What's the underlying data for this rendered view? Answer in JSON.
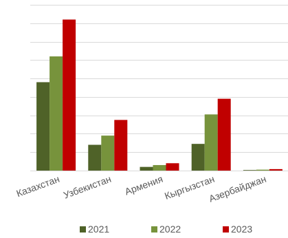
{
  "chart_data": {
    "type": "bar",
    "title": "",
    "xlabel": "",
    "ylabel": "",
    "categories": [
      "Казахстан",
      "Узбекистан",
      "Армения",
      "Кыргызстан",
      "Азербайджан"
    ],
    "ylim": [
      0,
      9
    ],
    "y_gridlines": [
      1,
      2,
      3,
      4,
      5,
      6,
      7,
      8,
      9
    ],
    "y_tick_labels_shown": false,
    "grid": true,
    "legend_position": "bottom",
    "series": [
      {
        "name": "2021",
        "color": "#4f6228",
        "values": [
          4.8,
          1.4,
          0.2,
          1.45,
          0.03
        ]
      },
      {
        "name": "2022",
        "color": "#77933c",
        "values": [
          6.2,
          1.9,
          0.3,
          3.05,
          0.05
        ]
      },
      {
        "name": "2023",
        "color": "#c00000",
        "values": [
          8.2,
          2.75,
          0.4,
          3.9,
          0.08
        ]
      }
    ]
  }
}
